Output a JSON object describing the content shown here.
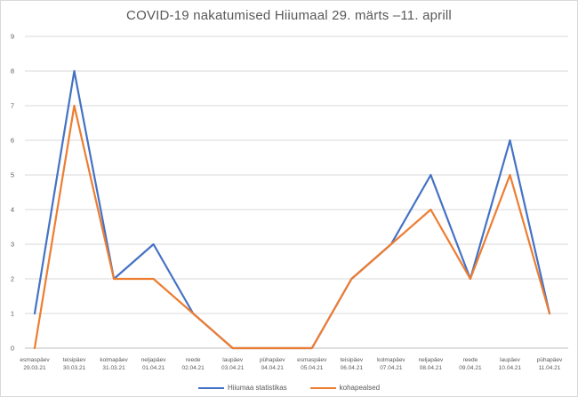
{
  "chart_data": {
    "type": "line",
    "title": "COVID-19 nakatumised Hiiumaal 29. märts –11. aprill",
    "categories": [
      {
        "day": "esmaspäev",
        "date": "29.03.21"
      },
      {
        "day": "teisipäev",
        "date": "30.03.21"
      },
      {
        "day": "kolmapäev",
        "date": "31.03.21"
      },
      {
        "day": "neljapäev",
        "date": "01.04.21"
      },
      {
        "day": "reede",
        "date": "02.04.21"
      },
      {
        "day": "laupäev",
        "date": "03.04.21"
      },
      {
        "day": "pühapäev",
        "date": "04.04.21"
      },
      {
        "day": "esmaspäev",
        "date": "05.04.21"
      },
      {
        "day": "teisipäev",
        "date": "06.04.21"
      },
      {
        "day": "kolmapäev",
        "date": "07.04.21"
      },
      {
        "day": "neljapäev",
        "date": "08.04.21"
      },
      {
        "day": "reede",
        "date": "09.04.21"
      },
      {
        "day": "laupäev",
        "date": "10.04.21"
      },
      {
        "day": "pühapäev",
        "date": "11.04.21"
      }
    ],
    "series": [
      {
        "name": "Hiiumaa statistikas",
        "color": "#4472C4",
        "values": [
          1,
          8,
          2,
          3,
          1,
          0,
          0,
          0,
          2,
          3,
          5,
          2,
          6,
          1
        ]
      },
      {
        "name": "kohapealsed",
        "color": "#ED7D31",
        "values": [
          0,
          7,
          2,
          2,
          1,
          0,
          0,
          0,
          2,
          3,
          4,
          2,
          5,
          1
        ]
      }
    ],
    "ylim": [
      0,
      9
    ],
    "yticks": [
      0,
      1,
      2,
      3,
      4,
      5,
      6,
      7,
      8,
      9
    ],
    "xlabel": "",
    "ylabel": "",
    "grid": "horizontal",
    "legend_position": "bottom",
    "grid_color": "#D9D9D9",
    "axis_color": "#BFBFBF",
    "text_color": "#595959",
    "title_color": "#595959",
    "background_color": "#FFFFFF"
  }
}
